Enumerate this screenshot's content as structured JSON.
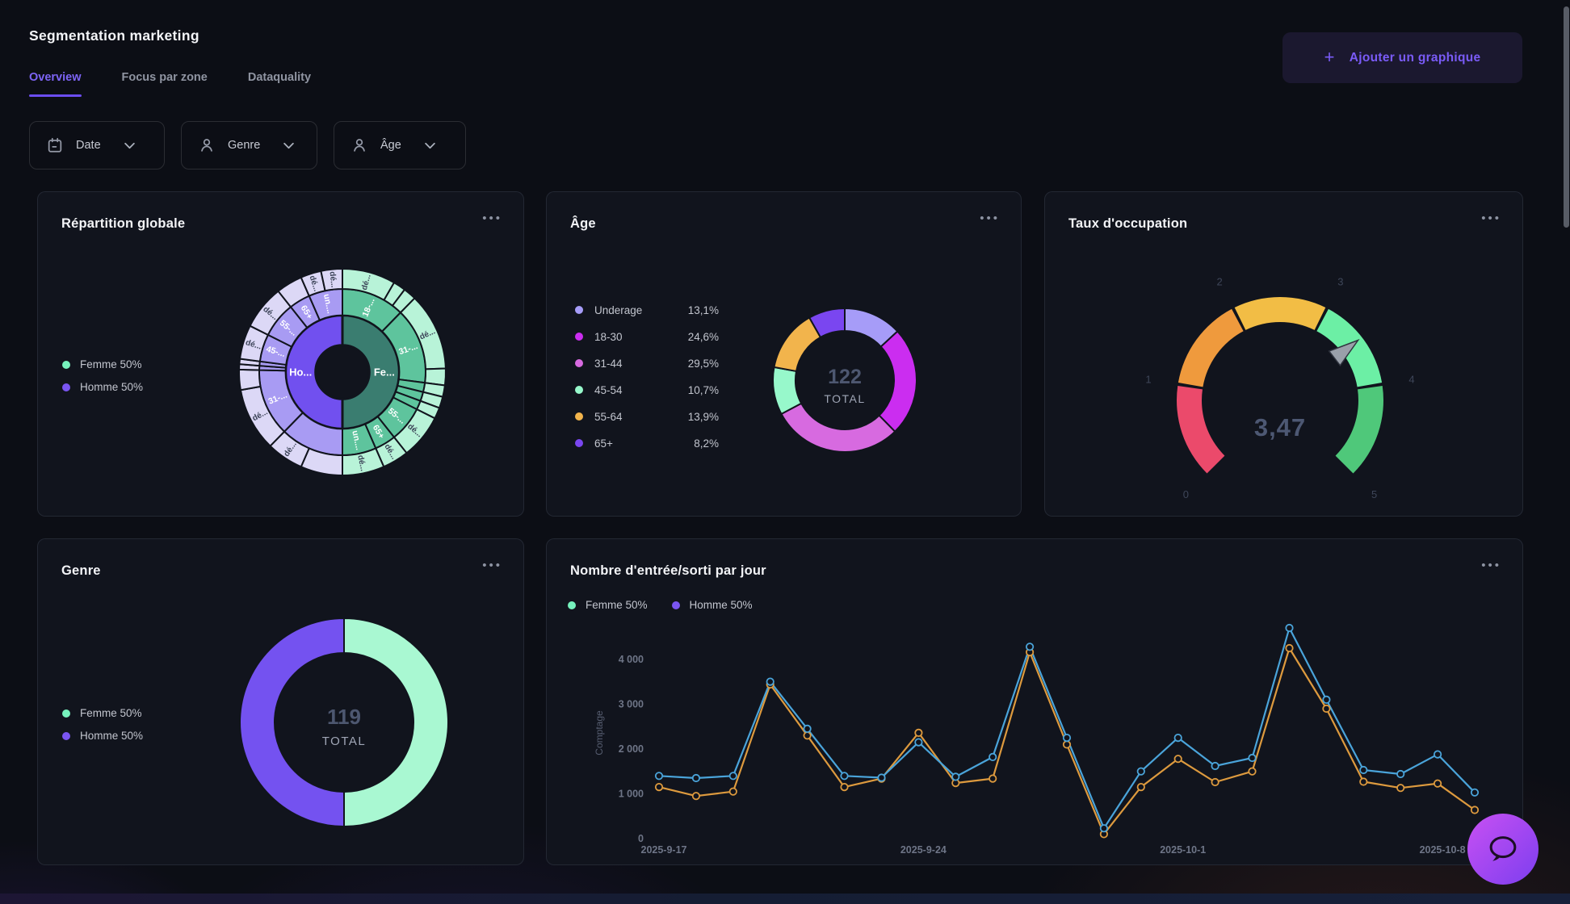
{
  "header": {
    "title": "Segmentation marketing",
    "plus": "+",
    "add_chart_button": "Ajouter un graphique"
  },
  "menu_dots": "•••",
  "tabs": [
    {
      "label": "Overview",
      "active": true
    },
    {
      "label": "Focus par zone",
      "active": false
    },
    {
      "label": "Dataquality",
      "active": false
    }
  ],
  "filters": [
    {
      "label": "Date",
      "icon": "calendar-icon"
    },
    {
      "label": "Genre",
      "icon": "user-icon"
    },
    {
      "label": "Âge",
      "icon": "user-icon"
    }
  ],
  "colors": {
    "accent": "#7a5bf7",
    "card_bg": "#11141d",
    "page_bg": "#0c0e15"
  },
  "chart_data": [
    {
      "id": "repartition",
      "type": "sunburst",
      "title": "Répartition globale",
      "legend": [
        {
          "label": "Femme 50%",
          "color": "#76f2bd"
        },
        {
          "label": "Homme 50%",
          "color": "#7a55f2"
        }
      ],
      "rings": [
        {
          "r": [
            0.26,
            0.55
          ],
          "label_r": 0.405,
          "segments": [
            [
              0,
              180,
              "Fe...",
              "#3a7d70"
            ],
            [
              180,
              360,
              "Ho...",
              "#7150ef"
            ]
          ]
        },
        {
          "r": [
            0.55,
            0.805
          ],
          "label_r": 0.675,
          "segments": [
            [
              0,
              44.3,
              "18-...",
              "#5ec49d"
            ],
            [
              44.3,
              97.4,
              "31-...",
              "#5ec49d"
            ],
            [
              97.4,
              103.9,
              "",
              "#5ec49d"
            ],
            [
              103.9,
              110.3,
              "",
              "#5ec49d"
            ],
            [
              110.3,
              116.6,
              "",
              "#5ec49d"
            ],
            [
              116.6,
              141.6,
              "55-...",
              "#5ec49d"
            ],
            [
              141.6,
              156.4,
              "65+",
              "#5ec49d"
            ],
            [
              156.4,
              180,
              "un....",
              "#5ec49d"
            ],
            [
              180,
              224.3,
              "",
              "#a89bf3"
            ],
            [
              224.3,
              271.4,
              "31-...",
              "#a89bf3"
            ],
            [
              271.4,
              274.4,
              "",
              "#a89bf3"
            ],
            [
              274.4,
              277.4,
              "",
              "#a89bf3"
            ],
            [
              277.4,
              296.6,
              "45-...",
              "#a89bf3"
            ],
            [
              296.6,
              321.6,
              "55-...",
              "#a89bf3"
            ],
            [
              321.6,
              336.4,
              "65+",
              "#a89bf3"
            ],
            [
              336.4,
              360,
              "un....",
              "#a89bf3"
            ]
          ]
        },
        {
          "r": [
            0.805,
            1.0
          ],
          "label_r": 0.9,
          "segments": [
            [
              0,
              30,
              "dé...",
              "#b8f3d8"
            ],
            [
              30,
              37,
              "",
              "#b8f3d8"
            ],
            [
              37,
              44.3,
              "",
              "#b8f3d8"
            ],
            [
              44.3,
              88,
              "dé...",
              "#b8f3d8"
            ],
            [
              88,
              97.4,
              "",
              "#b8f3d8"
            ],
            [
              97.4,
              103.9,
              "",
              "#b8f3d8"
            ],
            [
              103.9,
              110.3,
              "",
              "#b8f3d8"
            ],
            [
              110.3,
              116.6,
              "",
              "#b8f3d8"
            ],
            [
              116.6,
              141.6,
              "dé...",
              "#b8f3d8"
            ],
            [
              141.6,
              156.4,
              "dé...",
              "#b8f3d8"
            ],
            [
              156.4,
              180,
              "dé...",
              "#b8f3d8"
            ],
            [
              180,
              203.6,
              "",
              "#dcd8f6"
            ],
            [
              203.6,
              224.3,
              "dé...",
              "#dcd8f6"
            ],
            [
              224.3,
              260,
              "dé...",
              "#dcd8f6"
            ],
            [
              260,
              271.4,
              "",
              "#dcd8f6"
            ],
            [
              271.4,
              274.4,
              "",
              "#dcd8f6"
            ],
            [
              274.4,
              277.4,
              "",
              "#dcd8f6"
            ],
            [
              277.4,
              296.6,
              "dé...",
              "#dcd8f6"
            ],
            [
              296.6,
              321.6,
              "dé...",
              "#dcd8f6"
            ],
            [
              321.6,
              336.4,
              "",
              "#dcd8f6"
            ],
            [
              336.4,
              348,
              "dé...",
              "#dcd8f6"
            ],
            [
              348,
              360,
              "dé...",
              "#dcd8f6"
            ]
          ]
        }
      ]
    },
    {
      "id": "age",
      "type": "donut",
      "title": "Âge",
      "total": "122",
      "total_label": "TOTAL",
      "slices": [
        {
          "label": "Underage",
          "value": "13,1%",
          "pct": 13.1,
          "color": "#a69cf8"
        },
        {
          "label": "18-30",
          "value": "24,6%",
          "pct": 24.6,
          "color": "#cb2df0"
        },
        {
          "label": "31-44",
          "value": "29,5%",
          "pct": 29.5,
          "color": "#d76ae0"
        },
        {
          "label": "45-54",
          "value": "10,7%",
          "pct": 10.7,
          "color": "#97f8cb"
        },
        {
          "label": "55-64",
          "value": "13,9%",
          "pct": 13.9,
          "color": "#f2b44c"
        },
        {
          "label": "65+",
          "value": "8,2%",
          "pct": 8.2,
          "color": "#7a46f0"
        }
      ]
    },
    {
      "id": "occupation",
      "type": "gauge",
      "title": "Taux d'occupation",
      "value": 3.47,
      "value_display": "3,47",
      "min": 0,
      "max": 5,
      "ticks": [
        "0",
        "1",
        "2",
        "3",
        "4",
        "5"
      ],
      "segments": [
        {
          "from": 0,
          "to": 1,
          "color": "#eb4a6b"
        },
        {
          "from": 1,
          "to": 2,
          "color": "#ef9a3d"
        },
        {
          "from": 2,
          "to": 3,
          "color": "#f2bd45"
        },
        {
          "from": 3,
          "to": 4,
          "color": "#6cefa5"
        },
        {
          "from": 4,
          "to": 5,
          "color": "#4fc87a"
        }
      ]
    },
    {
      "id": "genre",
      "type": "donut",
      "title": "Genre",
      "total": "119",
      "total_label": "TOTAL",
      "legend": [
        {
          "label": "Femme 50%",
          "color": "#76f2bd"
        },
        {
          "label": "Homme 50%",
          "color": "#7a55f2"
        }
      ],
      "slices": [
        {
          "label": "Femme 50%",
          "pct": 50,
          "color": "#a9f8d2"
        },
        {
          "label": "Homme 50%",
          "pct": 50,
          "color": "#7452f0"
        }
      ]
    },
    {
      "id": "entries",
      "type": "line",
      "title": "Nombre d'entrée/sorti par jour",
      "ylabel": "Comptage",
      "legend": [
        {
          "label": "Femme 50%",
          "color": "#76f2bd"
        },
        {
          "label": "Homme 50%",
          "color": "#7a55f2"
        }
      ],
      "x": [
        "2025-9-17",
        "2025-9-18",
        "2025-9-19",
        "2025-9-20",
        "2025-9-21",
        "2025-9-22",
        "2025-9-23",
        "2025-9-24",
        "2025-9-25",
        "2025-9-26",
        "2025-9-27",
        "2025-9-28",
        "2025-9-29",
        "2025-9-30",
        "2025-10-1",
        "2025-10-2",
        "2025-10-3",
        "2025-10-4",
        "2025-10-5",
        "2025-10-6",
        "2025-10-7",
        "2025-10-8",
        "2025-10-9"
      ],
      "x_label_indices": [
        0,
        7,
        14,
        21
      ],
      "y_ticks": [
        {
          "v": 0,
          "label": "0"
        },
        {
          "v": 1000,
          "label": "1 000"
        },
        {
          "v": 2000,
          "label": "2 000"
        },
        {
          "v": 3000,
          "label": "3 000"
        },
        {
          "v": 4000,
          "label": "4 000"
        }
      ],
      "ylim": [
        0,
        4700
      ],
      "series": [
        {
          "name": "Homme",
          "color": "#dd9a3e",
          "values": [
            1150,
            950,
            1050,
            3440,
            2300,
            1150,
            1340,
            2360,
            1240,
            1340,
            4160,
            2100,
            100,
            1150,
            1780,
            1260,
            1500,
            4250,
            2900,
            1270,
            1130,
            1230,
            640
          ]
        },
        {
          "name": "Femme",
          "color": "#4aa4da",
          "values": [
            1400,
            1350,
            1400,
            3500,
            2450,
            1400,
            1360,
            2150,
            1380,
            1820,
            4280,
            2250,
            230,
            1500,
            2250,
            1620,
            1800,
            4700,
            3100,
            1530,
            1440,
            1880,
            1030
          ]
        }
      ]
    }
  ]
}
